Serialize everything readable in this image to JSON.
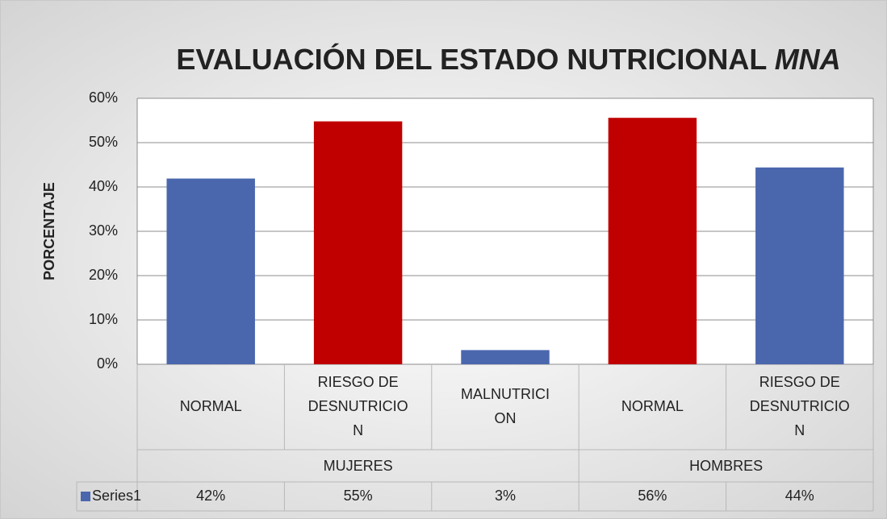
{
  "chart_data": {
    "type": "bar",
    "title": "EVALUACIÓN DEL ESTADO NUTRICIONAL",
    "title_italic": "MNA",
    "y_label": "PORCENTAJE",
    "categories": [
      [
        "NORMAL"
      ],
      [
        "RIESGO DE",
        "DESNUTRICIO",
        "N"
      ],
      [
        "MALNUTRICI",
        "ON"
      ],
      [
        "NORMAL"
      ],
      [
        "RIESGO DE",
        "DESNUTRICIO",
        "N"
      ]
    ],
    "groups": [
      {
        "label": "MUJERES",
        "span": [
          0,
          2
        ]
      },
      {
        "label": "HOMBRES",
        "span": [
          3,
          4
        ]
      }
    ],
    "series": [
      {
        "name": "Series1",
        "color": "#4a67ad",
        "values": [
          41.9,
          54.8,
          3.2,
          55.6,
          44.4
        ],
        "value_labels": [
          "42%",
          "55%",
          "3%",
          "56%",
          "44%"
        ],
        "colors": [
          "#4a67ad",
          "#c00000",
          "#4a67ad",
          "#c00000",
          "#4a67ad"
        ]
      }
    ],
    "ylim": [
      0,
      60
    ],
    "yticks": [
      {
        "value": 0,
        "label": "0%"
      },
      {
        "value": 10,
        "label": "10%"
      },
      {
        "value": 20,
        "label": "20%"
      },
      {
        "value": 30,
        "label": "30%"
      },
      {
        "value": 40,
        "label": "40%"
      },
      {
        "value": 50,
        "label": "50%"
      },
      {
        "value": 60,
        "label": "60%"
      }
    ],
    "grid": true
  }
}
